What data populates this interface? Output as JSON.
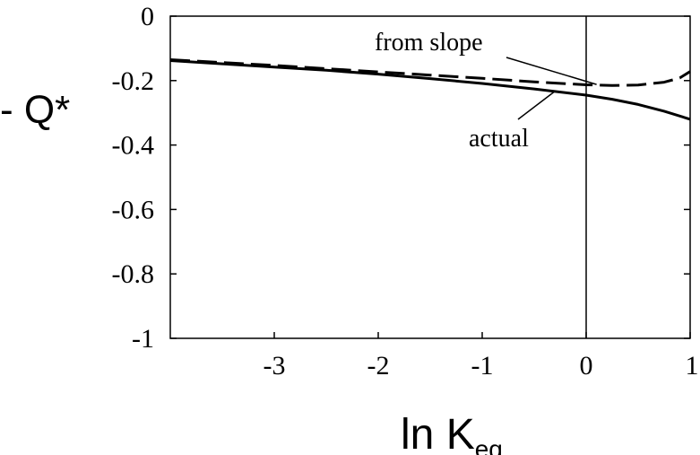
{
  "chart_data": {
    "type": "line",
    "title": "",
    "xlabel": {
      "main": "ln K",
      "sub": "eq"
    },
    "ylabel": "- Q*",
    "xlim": [
      -4,
      1
    ],
    "ylim": [
      -1,
      0
    ],
    "grid": false,
    "vline_x": 0,
    "x_ticks": [
      {
        "value": -3,
        "label": "-3"
      },
      {
        "value": -2,
        "label": "-2"
      },
      {
        "value": -1,
        "label": "-1"
      },
      {
        "value": 0,
        "label": "0"
      },
      {
        "value": 1,
        "label": "1"
      }
    ],
    "y_ticks": [
      {
        "value": 0,
        "label": "0"
      },
      {
        "value": -0.2,
        "label": "-0.2"
      },
      {
        "value": -0.4,
        "label": "-0.4"
      },
      {
        "value": -0.6,
        "label": "-0.6"
      },
      {
        "value": -0.8,
        "label": "-0.8"
      },
      {
        "value": -1,
        "label": "-1"
      }
    ],
    "series": [
      {
        "label": "actual",
        "style": "solid",
        "x": [
          -4,
          -3.5,
          -3,
          -2.5,
          -2,
          -1.5,
          -1,
          -0.5,
          0,
          0.25,
          0.5,
          0.75,
          1
        ],
        "y": [
          -0.138,
          -0.148,
          -0.158,
          -0.168,
          -0.18,
          -0.194,
          -0.209,
          -0.226,
          -0.245,
          -0.258,
          -0.274,
          -0.295,
          -0.32
        ]
      },
      {
        "label": "from slope",
        "style": "dashed",
        "x": [
          -4,
          -3.5,
          -3,
          -2.5,
          -2,
          -1.5,
          -1,
          -0.5,
          0,
          0.25,
          0.5,
          0.75,
          0.9,
          1
        ],
        "y": [
          -0.135,
          -0.144,
          -0.153,
          -0.163,
          -0.173,
          -0.183,
          -0.193,
          -0.204,
          -0.213,
          -0.215,
          -0.214,
          -0.205,
          -0.192,
          -0.172
        ]
      }
    ],
    "annotations": [
      {
        "text": "from slope",
        "series": "from slope",
        "point": [
          0.1,
          -0.212
        ]
      },
      {
        "text": "actual",
        "series": "actual",
        "point": [
          -0.3,
          -0.233
        ]
      }
    ]
  }
}
